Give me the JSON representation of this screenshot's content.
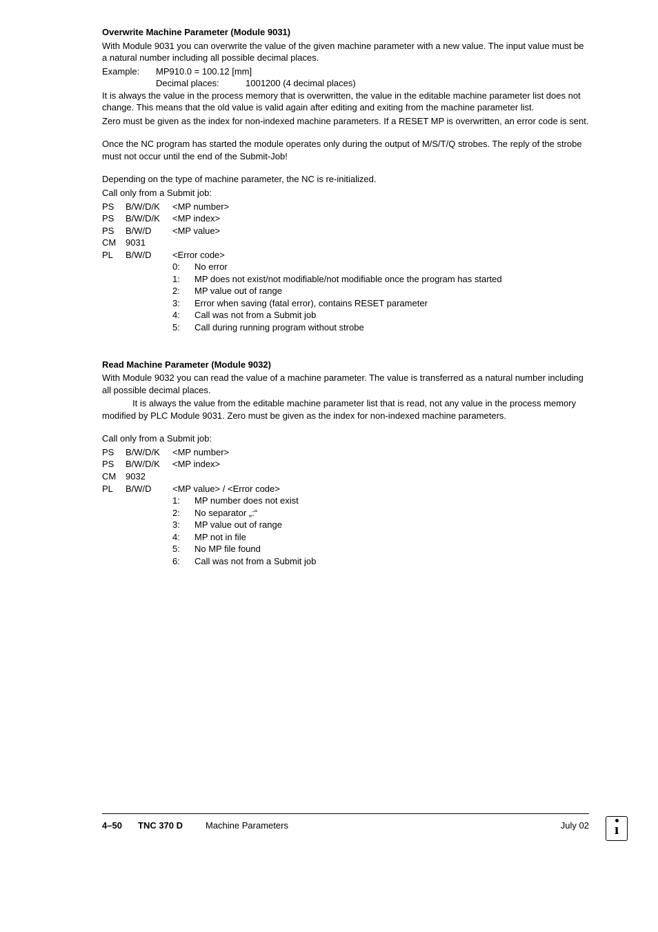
{
  "section1": {
    "title": "Overwrite Machine Parameter (Module 9031)",
    "p1": "With Module 9031 you can overwrite the value of the given machine parameter with a new value. The input value must be a natural number including all possible decimal places.",
    "example_label": "Example:",
    "example_val": "MP910.0 = 100.12 [mm]",
    "example_dec_lbl": "Decimal places:",
    "example_dec_val": "1001200 (4 decimal places)",
    "p2": "It is always the value in the process memory that is overwritten, the value in the editable machine parameter list does not change. This means that the old value is valid again after editing and exiting from the machine parameter list.",
    "p3": "Zero must be given as the index for non-indexed machine parameters. If a RESET MP is overwritten, an error code is sent.",
    "p4": "Once the NC program has started the module operates only during the output of M/S/T/Q strobes. The reply of the strobe must not occur until the end of the Submit-Job!",
    "p5": "Depending on the type of machine parameter, the NC is re-initialized.",
    "call_line": "Call only from a Submit job:",
    "rows": [
      {
        "c1": "PS",
        "c2": "B/W/D/K",
        "c3": "<MP number>"
      },
      {
        "c1": "PS",
        "c2": "B/W/D/K",
        "c3": "<MP index>"
      },
      {
        "c1": "PS",
        "c2": "B/W/D",
        "c3": "<MP value>"
      },
      {
        "c1": "CM",
        "c2": "9031",
        "c3": ""
      },
      {
        "c1": "PL",
        "c2": "B/W/D",
        "c3": "<Error code>"
      }
    ],
    "subs": [
      {
        "n": "0:",
        "t": "No error"
      },
      {
        "n": "1:",
        "t": "MP does not exist/not modifiable/not modifiable once the program has started"
      },
      {
        "n": "2:",
        "t": "MP value out of range"
      },
      {
        "n": "3:",
        "t": "Error when saving (fatal error), contains RESET parameter"
      },
      {
        "n": "4:",
        "t": "Call was not from a Submit job"
      },
      {
        "n": "5:",
        "t": "Call during running program without strobe"
      }
    ]
  },
  "section2": {
    "title": "Read Machine Parameter (Module 9032)",
    "p1": "With Module 9032 you can read the value of a machine parameter. The value is transferred as a natural number including all possible decimal places.",
    "p2": "It is always the value from the editable machine parameter list that is read, not any value in the process memory modified by PLC Module 9031. Zero must be given as the index for non-indexed machine parameters.",
    "call_line": "Call only from a Submit job:",
    "rows": [
      {
        "c1": "PS",
        "c2": "B/W/D/K",
        "c3": "<MP number>"
      },
      {
        "c1": "PS",
        "c2": "B/W/D/K",
        "c3": "<MP index>"
      },
      {
        "c1": "CM",
        "c2": "9032",
        "c3": ""
      },
      {
        "c1": "PL",
        "c2": "B/W/D",
        "c3": "<MP value> / <Error code>"
      }
    ],
    "subs": [
      {
        "n": "1:",
        "t": "MP number does not exist"
      },
      {
        "n": "2:",
        "t": "No separator „:“"
      },
      {
        "n": "3:",
        "t": "MP value out of range"
      },
      {
        "n": "4:",
        "t": "MP not in file"
      },
      {
        "n": "5:",
        "t": "No MP file found"
      },
      {
        "n": "6:",
        "t": "Call was not from a Submit job"
      }
    ]
  },
  "footer": {
    "page": "4–50",
    "model": "TNC 370 D",
    "title": "Machine Parameters",
    "date": "July 02"
  }
}
